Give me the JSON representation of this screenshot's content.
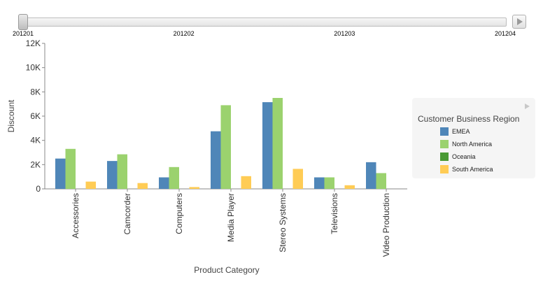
{
  "time_slider": {
    "ticks": [
      "201201",
      "201202",
      "201203",
      "201204"
    ],
    "current": "201201"
  },
  "chart_data": {
    "type": "bar",
    "xlabel": "Product Category",
    "ylabel": "Discount",
    "ylim": [
      0,
      12000
    ],
    "yticks": [
      {
        "value": 0,
        "label": "0"
      },
      {
        "value": 2000,
        "label": "2K"
      },
      {
        "value": 4000,
        "label": "4K"
      },
      {
        "value": 6000,
        "label": "6K"
      },
      {
        "value": 8000,
        "label": "8K"
      },
      {
        "value": 10000,
        "label": "10K"
      },
      {
        "value": 12000,
        "label": "12K"
      }
    ],
    "categories": [
      "Accessories",
      "Camcorder",
      "Computers",
      "Media Player",
      "Stereo Systems",
      "Televisions",
      "Video Production"
    ],
    "series": [
      {
        "name": "EMEA",
        "color": "#4f86b8",
        "values": [
          2500,
          2300,
          950,
          4750,
          7150,
          950,
          2200
        ]
      },
      {
        "name": "North America",
        "color": "#9bd26e",
        "values": [
          3300,
          2850,
          1800,
          6900,
          7500,
          950,
          1300
        ]
      },
      {
        "name": "Oceania",
        "color": "#4a9a34",
        "values": [
          0,
          0,
          0,
          0,
          0,
          0,
          0
        ]
      },
      {
        "name": "South America",
        "color": "#ffcc55",
        "values": [
          600,
          480,
          150,
          1050,
          1650,
          300,
          0
        ]
      }
    ],
    "legend": {
      "title": "Customer Business Region",
      "position": "right"
    },
    "grid": false
  }
}
